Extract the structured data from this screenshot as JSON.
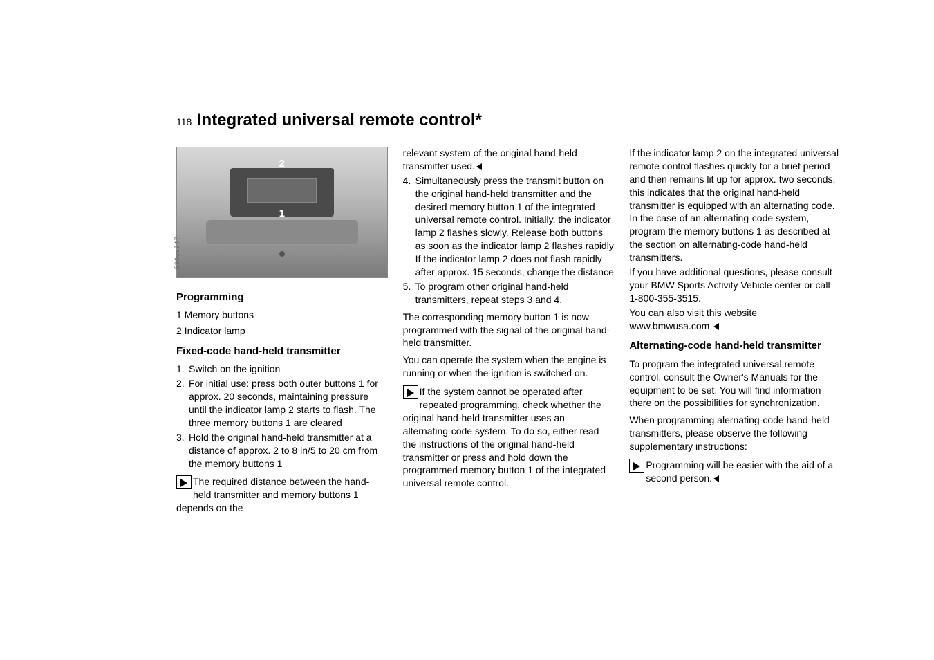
{
  "page_number": "118",
  "page_title": "Integrated universal remote control*",
  "diagram": {
    "callout_1": "1",
    "callout_2": "2",
    "side_label": "530us247"
  },
  "col1": {
    "h_programming": "Programming",
    "legend_1": "1 Memory buttons",
    "legend_2": "2 Indicator lamp",
    "h_fixed": "Fixed-code hand-held transmitter",
    "steps": {
      "s1": "Switch on the ignition",
      "s2": "For initial use: press both outer buttons 1 for approx. 20 seconds, maintaining pressure until the indicator lamp 2 starts to flash. The three memory buttons 1 are cleared",
      "s3": "Hold the original hand-held transmitter at a distance of approx. 2 to 8 in/5 to 20 cm from the memory buttons 1"
    },
    "note1": "The required distance between the hand-held transmitter and memory buttons 1 depends on the"
  },
  "col2": {
    "cont": "relevant system of the original hand-held transmitter used.",
    "steps": {
      "s4": "Simultaneously press the transmit button on the original hand-held transmitter and the desired memory button 1 of the integrated universal remote control. Initially, the indicator lamp 2 flashes slowly. Release both buttons as soon as the indicator lamp 2 flashes rapidly If the indicator lamp 2 does not flash rapidly after approx. 15 seconds, change the distance",
      "s5": "To program other original hand-held transmitters, repeat steps 3 and 4."
    },
    "p1": "The corresponding memory button 1 is now programmed with the signal of the original hand-held transmitter.",
    "p2": "You can operate the system when the engine is running or when the ignition is switched on.",
    "note2": "If the system cannot be operated after repeated programming, check whether the original hand-held transmitter uses an alternating-code system. To do so, either read the instructions of the original hand-held transmitter or press and hold down the programmed memory button 1 of the integrated universal remote control."
  },
  "col3": {
    "p1": "If the indicator lamp 2 on the integrated universal remote control flashes quickly for a brief period and then remains lit up for approx. two seconds, this indicates that the original hand-held transmitter is equipped with an alternating code. In the case of an alternating-code system, program the memory buttons 1 as described at the section on alternating-code hand-held transmitters.",
    "p2": "If you have additional questions, please consult your BMW Sports Activity Vehicle center or call 1-800-355-3515.",
    "p3a": "You can also visit this website",
    "p3b": "www.bmwusa.com",
    "h_alt": "Alternating-code hand-held transmitter",
    "p4": "To program the integrated universal remote control, consult the Owner's Manuals for the equipment to be set. You will find information there on the possibilities for synchronization.",
    "p5": "When programming alernating-code hand-held transmitters, please observe the following supplementary instructions:",
    "note3": "Programming will be easier with the aid of a second person."
  }
}
